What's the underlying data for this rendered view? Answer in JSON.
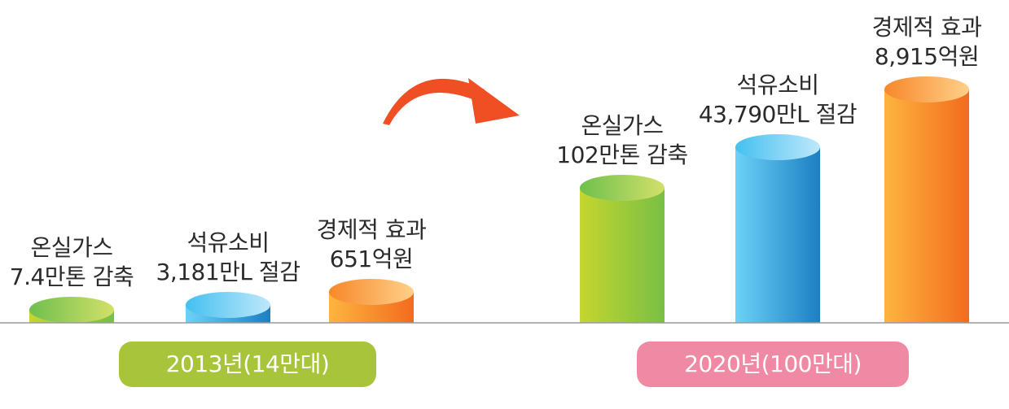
{
  "chart_data": {
    "type": "bar",
    "groups": [
      {
        "label": "2013년(14만대)",
        "color": "#a8c43a",
        "bars": [
          {
            "line1": "온실가스",
            "line2": "7.4만톤 감축",
            "value": 7.4,
            "unit": "만톤",
            "color": "green"
          },
          {
            "line1": "석유소비",
            "line2": "3,181만L 절감",
            "value": 3181,
            "unit": "만L",
            "color": "blue"
          },
          {
            "line1": "경제적 효과",
            "line2": "651억원",
            "value": 651,
            "unit": "억원",
            "color": "orange"
          }
        ]
      },
      {
        "label": "2020년(100만대)",
        "color": "#f08aa4",
        "bars": [
          {
            "line1": "온실가스",
            "line2": "102만톤 감축",
            "value": 102,
            "unit": "만톤",
            "color": "green"
          },
          {
            "line1": "석유소비",
            "line2": "43,790만L 절감",
            "value": 43790,
            "unit": "만L",
            "color": "blue"
          },
          {
            "line1": "경제적 효과",
            "line2": "8,915억원",
            "value": 8915,
            "unit": "억원",
            "color": "orange"
          }
        ]
      }
    ],
    "arrow_color": "#f04e23",
    "palette": {
      "green": [
        "#c5d62f",
        "#6fbf4e"
      ],
      "blue": [
        "#62cdf5",
        "#1d86c8"
      ],
      "orange": [
        "#fdb33d",
        "#f47321"
      ]
    }
  }
}
